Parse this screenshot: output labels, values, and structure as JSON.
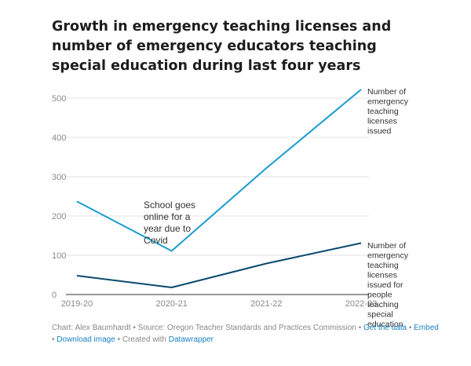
{
  "title": "Growth in emergency teaching licenses and number of emergency educators teaching special education during last four years",
  "chart_data": {
    "type": "line",
    "x": [
      "2019-20",
      "2020-21",
      "2021-22",
      "2022-23"
    ],
    "ylim": [
      0,
      520
    ],
    "yticks": [
      0,
      100,
      200,
      300,
      400,
      500
    ],
    "grid": "horizontal",
    "series": [
      {
        "name": "Number of emergency teaching licenses issued",
        "color": "#1a9ccf",
        "values": [
          237,
          111,
          322,
          522
        ]
      },
      {
        "name": "Number of emergency teaching licenses issued for people teaching special education",
        "color": "#0b4a6e",
        "values": [
          48,
          18,
          79,
          131
        ]
      }
    ],
    "annotation": "School goes online for a year due to Covid"
  },
  "footer": {
    "chart_by": "Chart: Alex Baumhardt",
    "sep1": " • ",
    "source": "Source: Oregon Teacher Standards and Practices Commission",
    "sep2": " • ",
    "get_data": "Get the data",
    "sep3": " • ",
    "embed": "Embed",
    "sep4": " • ",
    "download": "Download image",
    "sep5": " • ",
    "created_with": "Created with ",
    "datawrapper": "Datawrapper"
  }
}
